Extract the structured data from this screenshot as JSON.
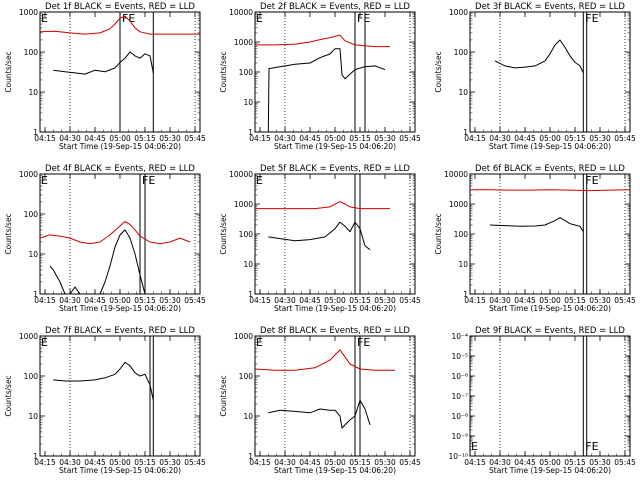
{
  "common": {
    "xlabel": "Start Time (19-Sep-15 04:06:20)",
    "ylabel": "Counts/sec",
    "x_ticks": [
      "04:15",
      "04:30",
      "04:45",
      "05:00",
      "05:15",
      "05:30",
      "05:45"
    ],
    "colors": {
      "events": "#000000",
      "lld": "#cc0000"
    }
  },
  "chart_data": [
    {
      "type": "line",
      "title": "Det 1f BLACK = Events, RED = LLD",
      "ylabel": "Counts/sec",
      "xlabel": "Start Time (19-Sep-15 04:06:20)",
      "ylim": [
        1,
        1000
      ],
      "y_scale": "log",
      "y_ticks": [
        1,
        10,
        100,
        1000
      ],
      "y_tick_labels": [
        "1",
        "10",
        "100",
        "1000"
      ],
      "markers": [
        "E",
        "FE"
      ],
      "vlines": [
        5.0,
        5.333
      ],
      "series": [
        {
          "name": "BLACK = Events",
          "x": [
            4.333,
            4.45,
            4.55,
            4.65,
            4.75,
            4.85,
            4.95,
            5.0,
            5.05,
            5.1,
            5.15,
            5.2,
            5.25,
            5.3,
            5.333
          ],
          "values": [
            35,
            32,
            30,
            28,
            35,
            32,
            40,
            55,
            70,
            100,
            80,
            70,
            90,
            80,
            30
          ]
        },
        {
          "name": "RED = LLD",
          "x": [
            4.2,
            4.35,
            4.5,
            4.65,
            4.8,
            4.9,
            4.95,
            5.0,
            5.05,
            5.1,
            5.15,
            5.2,
            5.3,
            5.5,
            5.8
          ],
          "values": [
            320,
            330,
            300,
            280,
            300,
            380,
            500,
            700,
            780,
            600,
            400,
            320,
            280,
            280,
            280
          ]
        }
      ]
    },
    {
      "type": "line",
      "title": "Det 2f BLACK = Events, RED = LLD",
      "ylabel": "Counts/sec",
      "xlabel": "Start Time (19-Sep-15 04:06:20)",
      "ylim": [
        1,
        10000
      ],
      "y_scale": "log",
      "y_ticks": [
        1,
        10,
        100,
        1000,
        10000
      ],
      "y_tick_labels": [
        "1",
        "10",
        "100",
        "1000",
        "10000"
      ],
      "markers": [
        "E",
        "FE"
      ],
      "vlines": [
        5.2,
        5.3
      ],
      "series": [
        {
          "name": "BLACK = Events",
          "x": [
            4.333,
            4.34,
            4.45,
            4.6,
            4.75,
            4.85,
            4.95,
            5.0,
            5.05,
            5.07,
            5.1,
            5.2,
            5.3,
            5.4,
            5.5
          ],
          "values": [
            1,
            130,
            150,
            180,
            200,
            300,
            400,
            600,
            600,
            80,
            60,
            120,
            150,
            160,
            120
          ]
        },
        {
          "name": "RED = LLD",
          "x": [
            4.2,
            4.4,
            4.6,
            4.75,
            4.85,
            4.95,
            5.05,
            5.1,
            5.2,
            5.3,
            5.4,
            5.55
          ],
          "values": [
            800,
            800,
            850,
            1000,
            1200,
            1400,
            1700,
            1100,
            800,
            750,
            700,
            700
          ]
        }
      ]
    },
    {
      "type": "line",
      "title": "Det 3f BLACK = Events, RED = LLD",
      "ylabel": "Counts/sec",
      "xlabel": "Start Time (19-Sep-15 04:06:20)",
      "ylim": [
        1,
        1000
      ],
      "y_scale": "log",
      "y_ticks": [
        1,
        10,
        100,
        1000
      ],
      "y_tick_labels": [
        "1",
        "10",
        "100",
        "1000"
      ],
      "markers": [
        "FE"
      ],
      "vlines": [
        5.333,
        5.367
      ],
      "series": [
        {
          "name": "BLACK = Events",
          "x": [
            4.45,
            4.55,
            4.65,
            4.75,
            4.85,
            4.95,
            5.0,
            5.05,
            5.1,
            5.15,
            5.2,
            5.25,
            5.3,
            5.333
          ],
          "values": [
            60,
            45,
            40,
            42,
            45,
            60,
            90,
            150,
            200,
            130,
            80,
            55,
            45,
            30
          ]
        }
      ]
    },
    {
      "type": "line",
      "title": "Det 4f BLACK = Events, RED = LLD",
      "ylabel": "Counts/sec",
      "xlabel": "Start Time (19-Sep-15 04:06:20)",
      "ylim": [
        1,
        1000
      ],
      "y_scale": "log",
      "y_ticks": [
        1,
        10,
        100,
        1000
      ],
      "y_tick_labels": [
        "1",
        "10",
        "100",
        "1000"
      ],
      "markers": [
        "E",
        "FE"
      ],
      "vlines": [
        5.2,
        5.25
      ],
      "series": [
        {
          "name": "BLACK = Events",
          "x": [
            4.3,
            4.333,
            4.36,
            4.4,
            4.45,
            4.5,
            4.55,
            4.6,
            4.7,
            4.8,
            4.85,
            4.9,
            4.95,
            5.0,
            5.05,
            5.1,
            5.15,
            5.2,
            5.25,
            5.3
          ],
          "values": [
            5,
            4,
            3,
            2,
            1,
            1,
            1.5,
            1,
            1,
            1,
            2,
            5,
            15,
            30,
            40,
            25,
            10,
            3,
            1,
            1
          ]
        },
        {
          "name": "RED = LLD",
          "x": [
            4.2,
            4.3,
            4.4,
            4.5,
            4.6,
            4.7,
            4.8,
            4.9,
            5.0,
            5.05,
            5.1,
            5.15,
            5.2,
            5.3,
            5.4,
            5.5,
            5.6,
            5.7
          ],
          "values": [
            25,
            30,
            28,
            25,
            20,
            18,
            20,
            30,
            50,
            65,
            55,
            40,
            28,
            20,
            18,
            20,
            25,
            20
          ]
        }
      ]
    },
    {
      "type": "line",
      "title": "Det 5f BLACK = Events, RED = LLD",
      "ylabel": "Counts/sec",
      "xlabel": "Start Time (19-Sep-15 04:06:20)",
      "ylim": [
        1,
        10000
      ],
      "y_scale": "log",
      "y_ticks": [
        1,
        10,
        100,
        1000,
        10000
      ],
      "y_tick_labels": [
        "1",
        "10",
        "100",
        "1000",
        "10000"
      ],
      "markers": [
        "E"
      ],
      "vlines": [
        5.2,
        5.25
      ],
      "series": [
        {
          "name": "BLACK = Events",
          "x": [
            4.333,
            4.45,
            4.6,
            4.75,
            4.9,
            5.0,
            5.05,
            5.1,
            5.15,
            5.2,
            5.25,
            5.3,
            5.35
          ],
          "values": [
            80,
            70,
            60,
            65,
            80,
            150,
            250,
            180,
            120,
            250,
            150,
            40,
            30
          ]
        },
        {
          "name": "RED = LLD",
          "x": [
            4.2,
            4.4,
            4.6,
            4.8,
            4.95,
            5.05,
            5.1,
            5.15,
            5.25,
            5.4,
            5.55
          ],
          "values": [
            700,
            700,
            700,
            700,
            800,
            1200,
            1000,
            800,
            700,
            700,
            700
          ]
        }
      ]
    },
    {
      "type": "line",
      "title": "Det 6f BLACK = Events, RED = LLD",
      "ylabel": "Counts/sec",
      "xlabel": "Start Time (19-Sep-15 04:06:20)",
      "ylim": [
        1,
        10000
      ],
      "y_scale": "log",
      "y_ticks": [
        1,
        10,
        100,
        1000,
        10000
      ],
      "y_tick_labels": [
        "1",
        "10",
        "100",
        "1000",
        "10000"
      ],
      "markers": [
        "FE"
      ],
      "vlines": [
        5.333,
        5.367
      ],
      "series": [
        {
          "name": "BLACK = Events",
          "x": [
            4.4,
            4.55,
            4.7,
            4.85,
            4.95,
            5.05,
            5.1,
            5.15,
            5.2,
            5.25,
            5.3,
            5.333
          ],
          "values": [
            200,
            190,
            180,
            185,
            200,
            280,
            350,
            280,
            220,
            200,
            180,
            120
          ]
        },
        {
          "name": "RED = LLD",
          "x": [
            4.2,
            4.4,
            4.6,
            4.8,
            5.0,
            5.2,
            5.4,
            5.6,
            5.8
          ],
          "values": [
            3000,
            3000,
            2900,
            2900,
            3000,
            2900,
            2800,
            2900,
            3000
          ]
        }
      ]
    },
    {
      "type": "line",
      "title": "Det 7f BLACK = Events, RED = LLD",
      "ylabel": "Counts/sec",
      "xlabel": "Start Time (19-Sep-15 04:06:20)",
      "ylim": [
        1,
        1000
      ],
      "y_scale": "log",
      "y_ticks": [
        1,
        10,
        100,
        1000
      ],
      "y_tick_labels": [
        "1",
        "10",
        "100",
        "1000"
      ],
      "markers": [
        "E"
      ],
      "vlines": [
        5.3,
        5.333
      ],
      "series": [
        {
          "name": "BLACK = Events",
          "x": [
            4.333,
            4.45,
            4.6,
            4.75,
            4.85,
            4.95,
            5.0,
            5.05,
            5.1,
            5.15,
            5.2,
            5.25,
            5.3,
            5.333
          ],
          "values": [
            80,
            75,
            75,
            80,
            90,
            110,
            150,
            220,
            180,
            120,
            100,
            110,
            60,
            25
          ]
        }
      ]
    },
    {
      "type": "line",
      "title": "Det 8f BLACK = Events, RED = LLD",
      "ylabel": "Counts/sec",
      "xlabel": "Start Time (19-Sep-15 04:06:20)",
      "ylim": [
        1,
        1000
      ],
      "y_scale": "log",
      "y_ticks": [
        1,
        10,
        100,
        1000
      ],
      "y_tick_labels": [
        "1",
        "10",
        "100",
        "1000"
      ],
      "markers": [
        "E",
        "FE"
      ],
      "vlines": [
        5.2,
        5.25
      ],
      "series": [
        {
          "name": "BLACK = Events",
          "x": [
            4.333,
            4.45,
            4.6,
            4.75,
            4.85,
            4.95,
            5.0,
            5.05,
            5.07,
            5.1,
            5.15,
            5.2,
            5.25,
            5.3,
            5.35
          ],
          "values": [
            12,
            14,
            13,
            12,
            15,
            14,
            14,
            10,
            5,
            6,
            8,
            10,
            25,
            15,
            6
          ]
        },
        {
          "name": "RED = LLD",
          "x": [
            4.2,
            4.4,
            4.6,
            4.8,
            4.95,
            5.05,
            5.1,
            5.15,
            5.25,
            5.4,
            5.6
          ],
          "values": [
            150,
            140,
            140,
            160,
            250,
            450,
            300,
            200,
            150,
            140,
            140
          ]
        }
      ]
    },
    {
      "type": "line",
      "title": "Det 9f BLACK = Events, RED = LLD",
      "ylabel": "",
      "xlabel": "Start Time (19-Sep-15 04:06:20)",
      "ylim": [
        1e-10,
        0.0001
      ],
      "y_scale": "log",
      "y_ticks": [
        1e-10,
        1e-09,
        1e-08,
        1e-07,
        1e-06,
        1e-05,
        0.0001
      ],
      "y_tick_labels": [
        "10⁻¹⁰",
        "10⁻⁹",
        "10⁻⁸",
        "10⁻⁷",
        "10⁻⁶",
        "10⁻⁵",
        "10⁻⁴"
      ],
      "markers": [
        "E",
        "FE"
      ],
      "vlines": [
        5.333,
        5.367
      ],
      "series": []
    }
  ]
}
